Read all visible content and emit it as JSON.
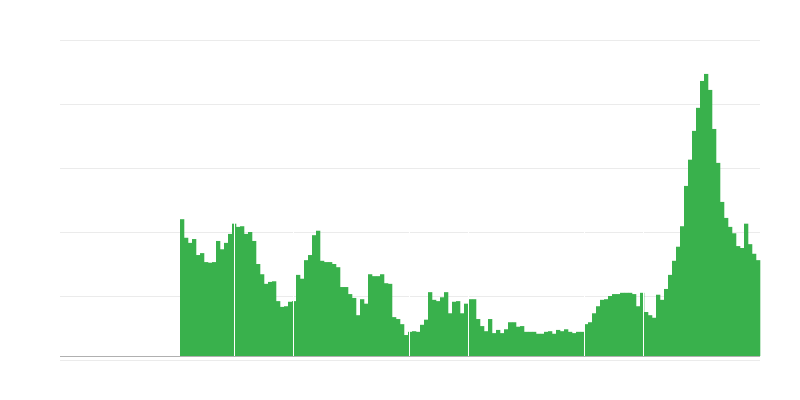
{
  "chart_data": {
    "type": "bar",
    "title": "",
    "xlabel": "",
    "ylabel": "",
    "ylim": [
      0,
      500
    ],
    "y_gridlines": [
      100,
      200,
      300,
      400,
      500
    ],
    "grid": true,
    "legend": "none",
    "tick_labels_shown": false,
    "colors": {
      "bar": "#39b14c",
      "grid": "#ebebeb",
      "axis": "#b0b0b0",
      "background": "#ffffff"
    },
    "series": [
      {
        "values": [
          0,
          0,
          0,
          0,
          0,
          0,
          0,
          0,
          0,
          0,
          0,
          0,
          0,
          0,
          0,
          0,
          0,
          0,
          0,
          0,
          0,
          0,
          0,
          0,
          0,
          0,
          0,
          0,
          0,
          0,
          220,
          191,
          183,
          189,
          164,
          167,
          153,
          152,
          153,
          186,
          173,
          183,
          197,
          213,
          208,
          209,
          197,
          200,
          186,
          150,
          134,
          119,
          122,
          123,
          92,
          83,
          84,
          91,
          92,
          133,
          127,
          156,
          164,
          195,
          202,
          155,
          153,
          153,
          150,
          145,
          114,
          114,
          103,
          97,
          70,
          95,
          88,
          134,
          131,
          131,
          134,
          120,
          119,
          67,
          64,
          56,
          39,
          44,
          45,
          44,
          55,
          63,
          106,
          94,
          92,
          98,
          106,
          73,
          91,
          92,
          73,
          88,
          95,
          95,
          64,
          53,
          45,
          64,
          42,
          47,
          42,
          48,
          59,
          59,
          52,
          53,
          44,
          44,
          44,
          41,
          41,
          44,
          45,
          41,
          47,
          45,
          48,
          44,
          42,
          44,
          44,
          56,
          59,
          73,
          84,
          94,
          95,
          100,
          103,
          103,
          105,
          105,
          105,
          103,
          84,
          105,
          75,
          70,
          66,
          102,
          94,
          111,
          133,
          155,
          177,
          209,
          272,
          313,
          358,
          394,
          436,
          447,
          422,
          361,
          308,
          247,
          222,
          208,
          198,
          178,
          175,
          213,
          181,
          166,
          156
        ]
      }
    ]
  }
}
